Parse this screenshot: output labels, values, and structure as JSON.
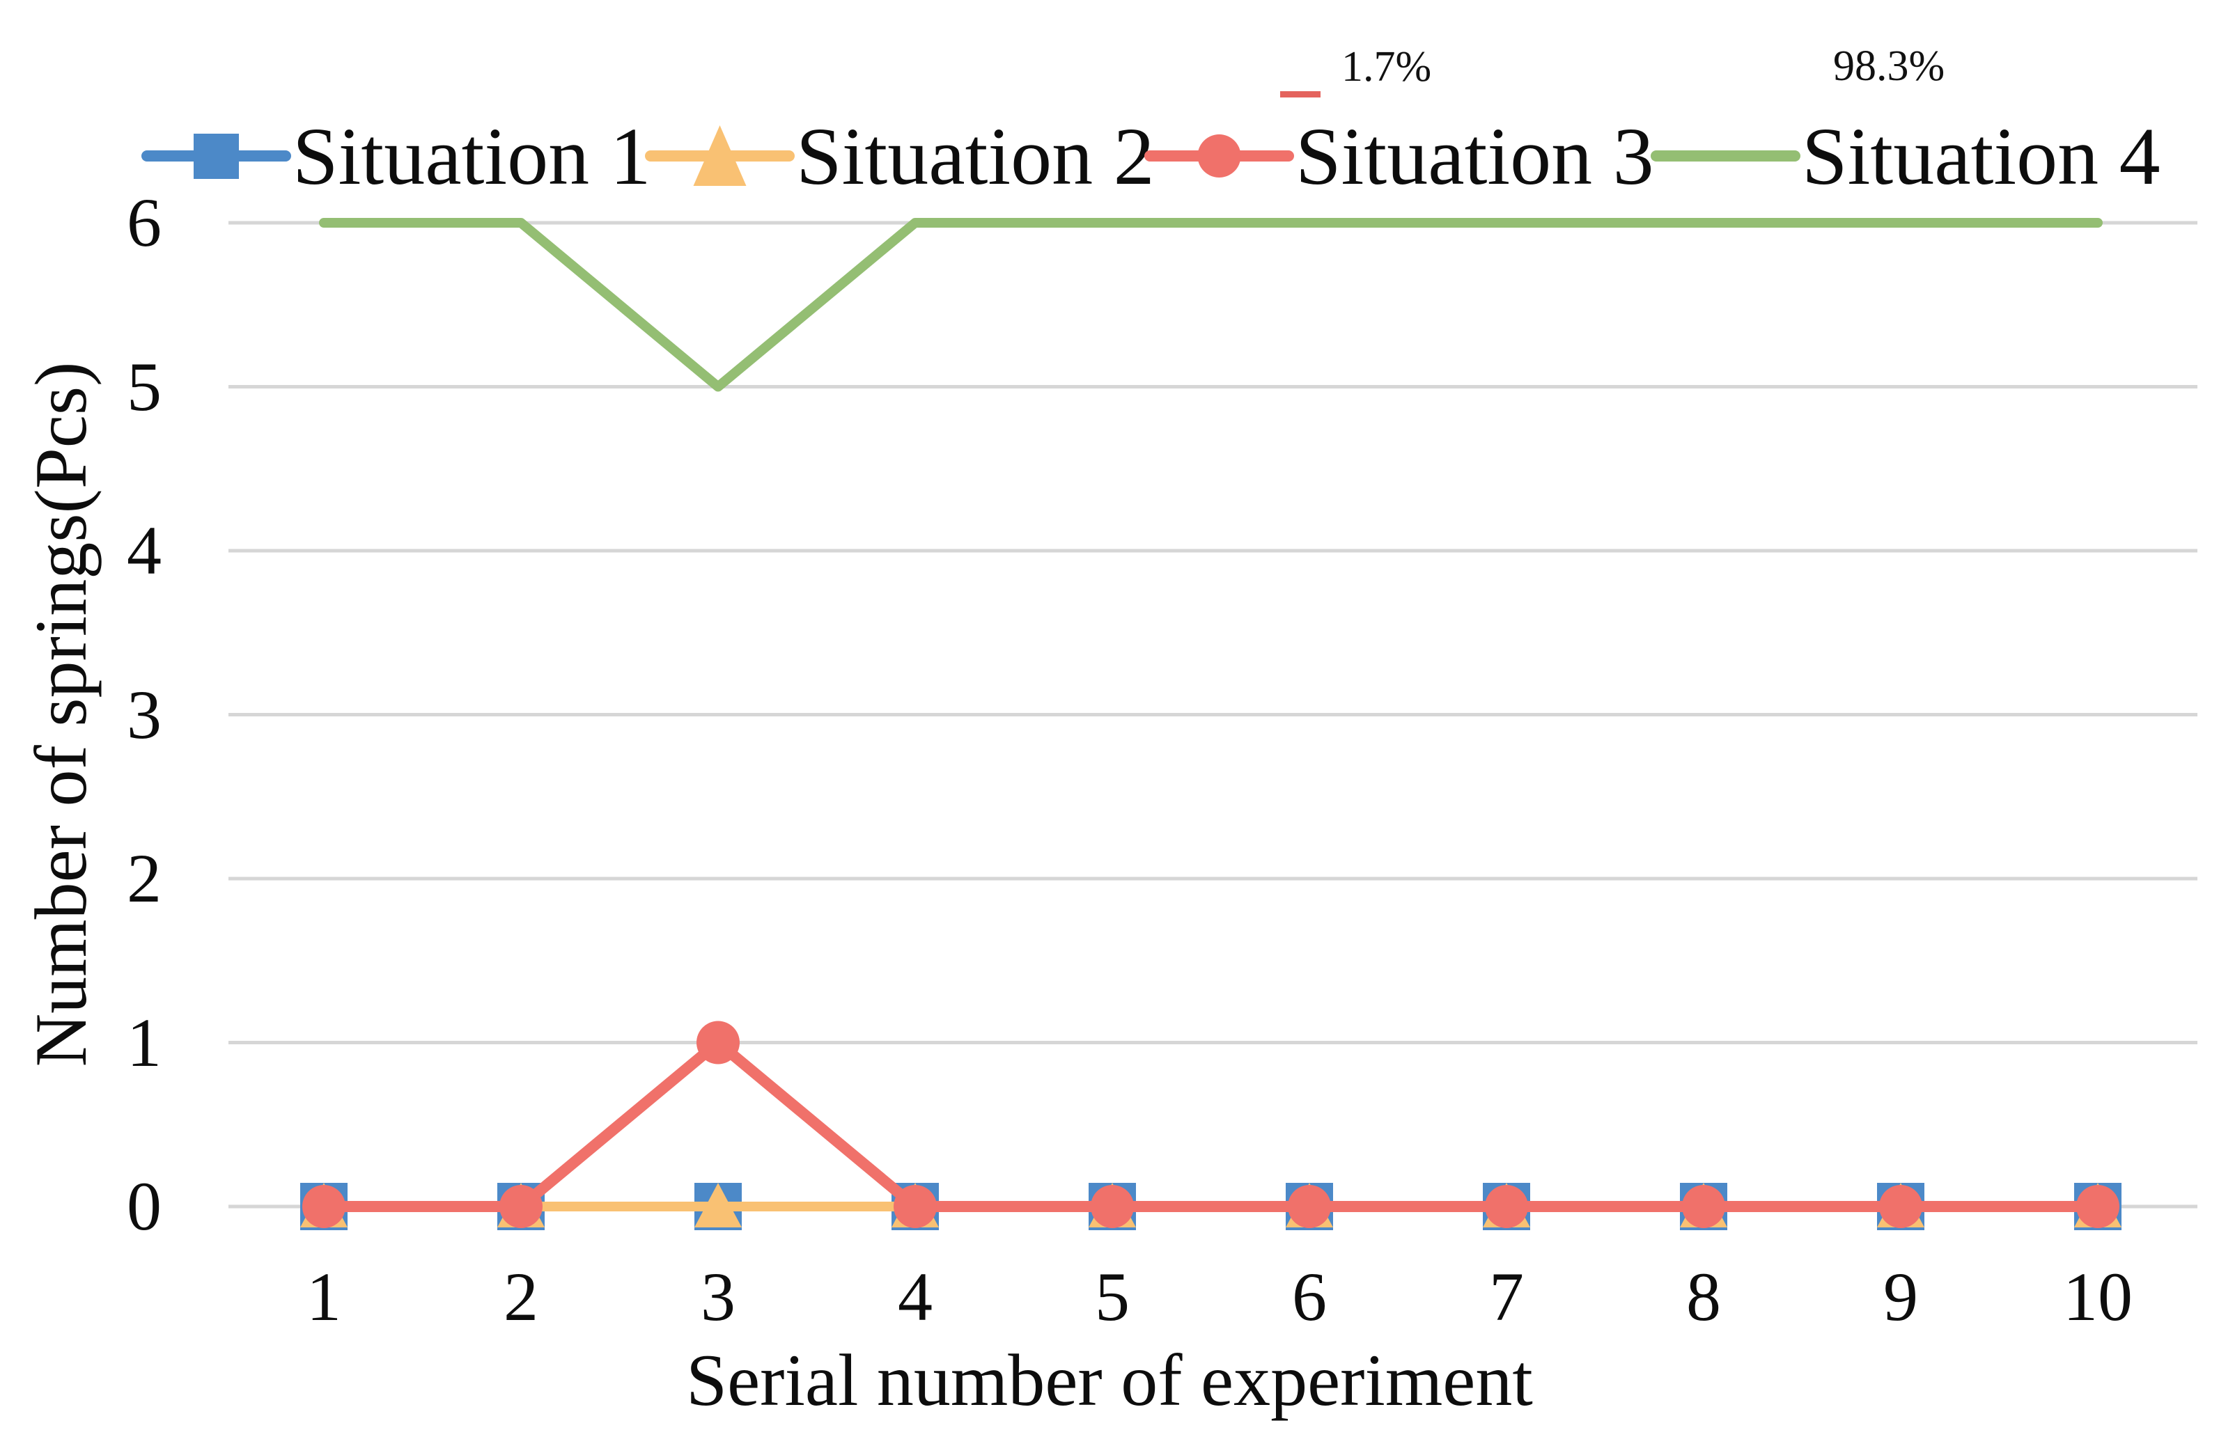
{
  "figure": {
    "background": "#ffffff",
    "text_color": "#0d0d0d"
  },
  "annotations": {
    "red_label": "1.7%",
    "red_swatch_color": "#f0716a",
    "green_label": "98.3%",
    "green_box_color": "#9bc47e"
  },
  "legend": [
    {
      "label": "Situation 1",
      "color": "#4c89c8",
      "marker": "square"
    },
    {
      "label": "Situation 2",
      "color": "#f9c173",
      "marker": "triangle"
    },
    {
      "label": "Situation 3",
      "color": "#f0716a",
      "marker": "circle"
    },
    {
      "label": "Situation 4",
      "color": "#94be73",
      "marker": "none"
    }
  ],
  "chart_data": {
    "type": "line",
    "title": "",
    "categories": [
      "1",
      "2",
      "3",
      "4",
      "5",
      "6",
      "7",
      "8",
      "9",
      "10"
    ],
    "series": [
      {
        "name": "Situation 1",
        "marker": "square",
        "color": "#4c89c8",
        "values": [
          0,
          0,
          0,
          0,
          0,
          0,
          0,
          0,
          0,
          0
        ]
      },
      {
        "name": "Situation 2",
        "marker": "triangle",
        "color": "#f9c173",
        "values": [
          0,
          0,
          0,
          0,
          0,
          0,
          0,
          0,
          0,
          0
        ]
      },
      {
        "name": "Situation 3",
        "marker": "circle",
        "color": "#f0716a",
        "values": [
          0,
          0,
          1,
          0,
          0,
          0,
          0,
          0,
          0,
          0
        ]
      },
      {
        "name": "Situation 4",
        "marker": "none",
        "color": "#94be73",
        "values": [
          6,
          6,
          5,
          6,
          6,
          6,
          6,
          6,
          6,
          6
        ]
      }
    ],
    "xlabel": "Serial number of experiment",
    "ylabel": "Number of springs(Pcs)",
    "ylim": [
      0,
      6
    ],
    "yticks": [
      0,
      1,
      2,
      3,
      4,
      5,
      6
    ],
    "grid": "horizontal",
    "gridcolor": "#d6d6d6",
    "legend_position": "top",
    "annotations": [
      {
        "text": "1.7%",
        "color": "#f0716a",
        "refers_to": "Situation 3"
      },
      {
        "text": "98.3%",
        "color": "#9bc47e",
        "refers_to": "Situation 4"
      }
    ]
  }
}
